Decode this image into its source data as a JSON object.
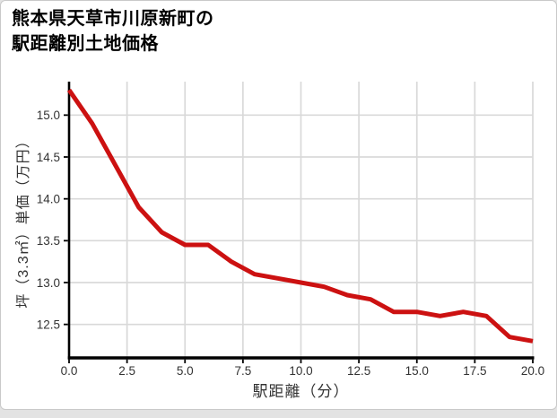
{
  "page": {
    "background_color": "#e3e3e3",
    "card": {
      "background_color": "#ffffff",
      "border_color": "#c9c9c9"
    }
  },
  "title": {
    "line1": "熊本県天草市川原新町の",
    "line2": "駅距離別土地価格"
  },
  "chart_data": {
    "type": "line",
    "title": "熊本県天草市川原新町の駅距離別土地価格",
    "xlabel": "駅距離（分）",
    "ylabel": "坪（3.3㎡）単価（万円）",
    "x": [
      0,
      1,
      2,
      3,
      4,
      5,
      6,
      7,
      8,
      9,
      10,
      11,
      12,
      13,
      14,
      15,
      16,
      17,
      18,
      19,
      20
    ],
    "values": [
      15.3,
      14.9,
      14.4,
      13.9,
      13.6,
      13.45,
      13.45,
      13.25,
      13.1,
      13.05,
      13.0,
      12.95,
      12.85,
      12.8,
      12.65,
      12.65,
      12.6,
      12.65,
      12.6,
      12.35,
      12.3
    ],
    "xlim": [
      0,
      20
    ],
    "ylim": [
      12.1,
      15.4
    ],
    "xticks": [
      0,
      2.5,
      5,
      7.5,
      10,
      12.5,
      15,
      17.5,
      20
    ],
    "xtick_labels": [
      "0.0",
      "2.5",
      "5.0",
      "7.5",
      "10.0",
      "12.5",
      "15.0",
      "17.5",
      "20.0"
    ],
    "yticks": [
      12.5,
      13.0,
      13.5,
      14.0,
      14.5,
      15.0
    ],
    "ytick_labels": [
      "12.5",
      "13.0",
      "13.5",
      "14.0",
      "14.5",
      "15.0"
    ],
    "grid": true,
    "legend": false,
    "line_color": "#cc1111",
    "grid_color": "#d9d9d9",
    "axis_color": "#000000",
    "tick_label_color": "#333333"
  }
}
